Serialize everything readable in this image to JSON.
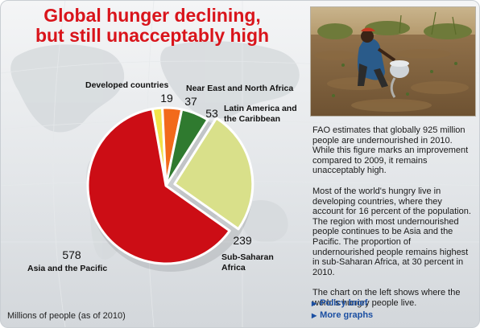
{
  "title_lines": [
    "Global hunger declining,",
    "but still unacceptably high"
  ],
  "footnote": "Millions of people (as of 2010)",
  "chart_data": {
    "type": "pie",
    "title": "Global hunger declining, but still unacceptably high",
    "unit": "Millions of people (as of 2010)",
    "slices": [
      {
        "label": "Developed countries",
        "label_lines": [
          "Developed countries"
        ],
        "value": 19,
        "color": "#f2e24a"
      },
      {
        "label": "Near East and North Africa",
        "label_lines": [
          "Near East and North Africa"
        ],
        "value": 37,
        "color": "#f26a1b"
      },
      {
        "label": "Latin America and the Caribbean",
        "label_lines": [
          "Latin America and",
          "the Caribbean"
        ],
        "value": 53,
        "color": "#2f7a2f"
      },
      {
        "label": "Sub-Saharan Africa",
        "label_lines": [
          "Sub-Saharan",
          "Africa"
        ],
        "value": 239,
        "color": "#d9e08a",
        "exploded": true
      },
      {
        "label": "Asia and the Pacific",
        "label_lines": [
          "Asia and the Pacific"
        ],
        "value": 578,
        "color": "#cc0d15"
      }
    ]
  },
  "side_paragraphs": [
    "FAO estimates that globally 925 million people are undernourished in 2010. While this figure marks an improvement compared to 2009, it remains unacceptably high.",
    "Most of the world's hungry live in developing countries, where they account for 16 percent of the population. The region with most undernourished people continues to be Asia and the Pacific. The proportion of undernourished people remains highest in sub-Saharan Africa, at 30 percent in 2010.",
    "The chart on the left shows where the world's hungry people live."
  ],
  "links": [
    "Policy brief",
    "More graphs"
  ]
}
